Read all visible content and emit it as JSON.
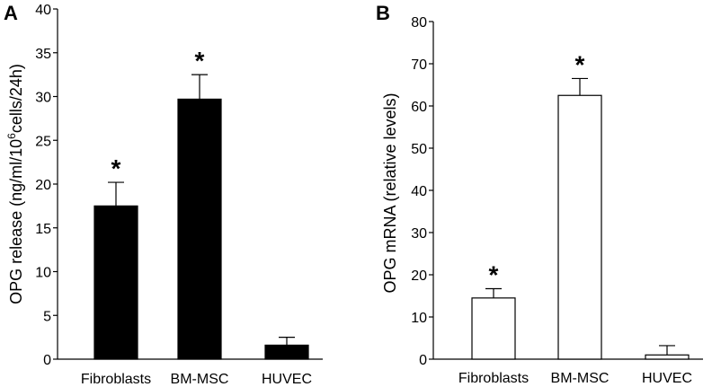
{
  "chart_data": [
    {
      "type": "bar",
      "panel_label": "A",
      "ylabel_parts": [
        "OPG release (ng/ml/10",
        "6",
        "cells/24h)"
      ],
      "categories": [
        "Fibroblasts",
        "BM-MSC",
        "HUVEC"
      ],
      "values": [
        17.5,
        29.7,
        1.6
      ],
      "errors": [
        2.7,
        2.8,
        0.9
      ],
      "significance": [
        "*",
        "*",
        ""
      ],
      "ylim": [
        0,
        40
      ],
      "yticks": [
        "0",
        "5",
        "10",
        "15",
        "20",
        "25",
        "30",
        "35",
        "40"
      ],
      "bar_fill": "#000000",
      "grid": false
    },
    {
      "type": "bar",
      "panel_label": "B",
      "ylabel": "OPG mRNA (relative levels)",
      "categories": [
        "Fibroblasts",
        "BM-MSC",
        "HUVEC"
      ],
      "values": [
        14.5,
        62.5,
        1.0
      ],
      "errors": [
        2.2,
        4.0,
        2.2
      ],
      "significance": [
        "*",
        "*",
        ""
      ],
      "ylim": [
        0,
        80
      ],
      "yticks": [
        "0",
        "10",
        "20",
        "30",
        "40",
        "50",
        "60",
        "70",
        "80"
      ],
      "bar_fill": "#ffffff",
      "grid": false
    }
  ]
}
